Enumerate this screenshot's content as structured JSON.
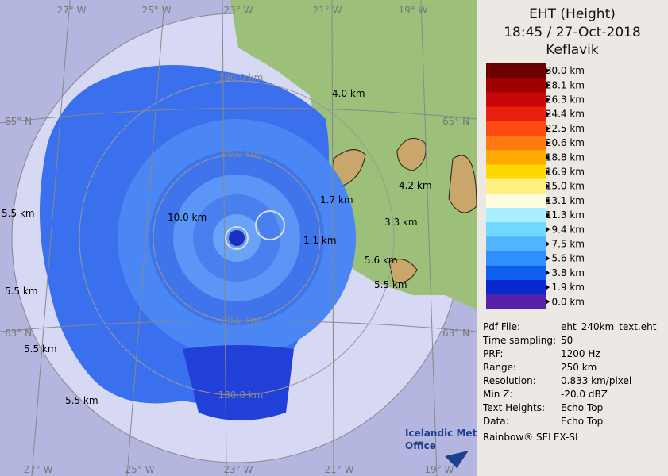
{
  "panel": {
    "title": [
      "EHT (Height)",
      "18:45 / 27-Oct-2018",
      "Keflavik"
    ],
    "legend": {
      "labels": [
        "30.0 km",
        "28.1 km",
        "26.3 km",
        "24.4 km",
        "22.5 km",
        "20.6 km",
        "18.8 km",
        "16.9 km",
        "15.0 km",
        "13.1 km",
        "11.3 km",
        "9.4 km",
        "7.5 km",
        "5.6 km",
        "3.8 km",
        "1.9 km",
        "0.0 km"
      ],
      "colors": [
        "#6b0000",
        "#a00000",
        "#c80808",
        "#e82010",
        "#ff4a10",
        "#ff7a10",
        "#ffaa00",
        "#ffd800",
        "#fff080",
        "#fffce0",
        "#a8f0ff",
        "#70d8ff",
        "#50b4ff",
        "#3090ff",
        "#1060f0",
        "#0828d0",
        "#5820a8"
      ]
    },
    "info": [
      [
        "Pdf File:",
        "eht_240km_text.eht"
      ],
      [
        "Time sampling:",
        "50"
      ],
      [
        "PRF:",
        "1200 Hz"
      ],
      [
        "Range:",
        "250 km"
      ],
      [
        "Resolution:",
        "0.833 km/pixel"
      ],
      [
        "Min Z:",
        "-20.0 dBZ"
      ],
      [
        "Text Heights:",
        "Echo Top"
      ],
      [
        "Data:",
        "Echo Top"
      ]
    ],
    "footer": "Rainbow® SELEX-SI"
  },
  "map": {
    "lon_labels_top": [
      "27° W",
      "25° W",
      "23° W",
      "21° W",
      "19° W"
    ],
    "lon_labels_bottom": [
      "27° W",
      "25° W",
      "23° W",
      "21° W",
      "19° W"
    ],
    "lat_labels": [
      "65° N",
      "63° N"
    ],
    "ring_labels": [
      "90.0 km",
      "180.0 km"
    ],
    "echo_labels": [
      "4.0 km",
      "1.7 km",
      "4.2 km",
      "10.0 km",
      "3.3 km",
      "1.1 km",
      "5.6 km",
      "5.5 km"
    ],
    "logo": [
      "Icelandic Met",
      "Office"
    ]
  }
}
